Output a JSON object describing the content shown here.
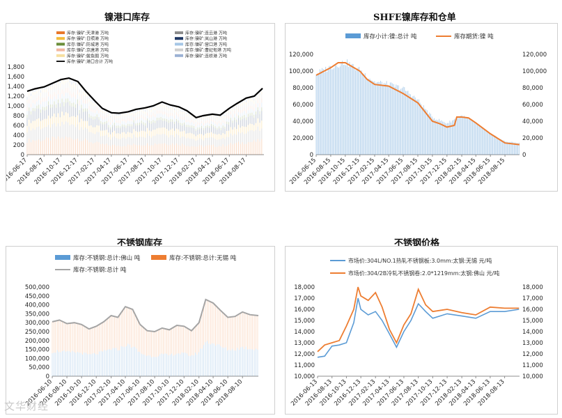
{
  "watermark": "文华财经",
  "chart_data": [
    {
      "id": "nickel-port",
      "type": "bar",
      "title": "镍港口库存",
      "ylim": [
        0,
        1800
      ],
      "yticks": [
        0,
        200,
        400,
        600,
        800,
        1000,
        1200,
        1400,
        1600,
        1800
      ],
      "ytick_labels": [
        "0",
        "200",
        "400",
        "600",
        "800",
        "1,000",
        "1,200",
        "1,400",
        "1,600",
        "1,800"
      ],
      "x_start": "2016-06-17",
      "x_end": "2018-10-20",
      "xtick_labels": [
        "2016-06-17",
        "2016-08-17",
        "2016-10-17",
        "2016-12-17",
        "2017-02-17",
        "2017-04-17",
        "2017-06-17",
        "2017-08-17",
        "2017-10-17",
        "2017-12-17",
        "2018-02-17",
        "2018-04-17",
        "2018-06-17",
        "2018-08-17"
      ],
      "legend": [
        {
          "name": "库存:镍矿:天津港 万吨",
          "color": "#e8782a",
          "kind": "bar"
        },
        {
          "name": "库存:镍矿:连云港 万吨",
          "color": "#8c8c8c",
          "kind": "bar"
        },
        {
          "name": "库存:镍矿:日照港 万吨",
          "color": "#f4bc3c",
          "kind": "bar"
        },
        {
          "name": "库存:镍矿:岚山港 万吨",
          "color": "#203864",
          "kind": "bar"
        },
        {
          "name": "库存:镍矿:防城港 万吨",
          "color": "#6b8e3a",
          "kind": "bar"
        },
        {
          "name": "库存:镍矿:营口港 万吨",
          "color": "#a6c6e6",
          "kind": "bar"
        },
        {
          "name": "库存:镍矿:京唐港 万吨",
          "color": "#f2b8a0",
          "kind": "bar"
        },
        {
          "name": "库存:镍矿:曹妃甸港 万吨",
          "color": "#cfcfcf",
          "kind": "bar"
        },
        {
          "name": "库存:镍矿:鲅鱼圈 万吨",
          "color": "#f7dfa0",
          "kind": "bar"
        },
        {
          "name": "库存:镍矿:连桥港 万吨",
          "color": "#9bb1d4",
          "kind": "bar"
        },
        {
          "name": "库存:镍矿:港口合计 万吨",
          "color": "#000000",
          "kind": "line"
        }
      ],
      "total_series": {
        "name": "库存:镍矿:港口合计 万吨",
        "points": [
          [
            "2016-06-17",
            1300
          ],
          [
            "2016-07-15",
            1350
          ],
          [
            "2016-08-17",
            1390
          ],
          [
            "2016-09-15",
            1460
          ],
          [
            "2016-10-17",
            1540
          ],
          [
            "2016-11-15",
            1570
          ],
          [
            "2016-12-17",
            1500
          ],
          [
            "2017-01-15",
            1300
          ],
          [
            "2017-02-17",
            1100
          ],
          [
            "2017-03-15",
            950
          ],
          [
            "2017-04-17",
            860
          ],
          [
            "2017-05-15",
            850
          ],
          [
            "2017-06-17",
            880
          ],
          [
            "2017-07-15",
            930
          ],
          [
            "2017-08-17",
            960
          ],
          [
            "2017-09-15",
            1000
          ],
          [
            "2017-10-17",
            1080
          ],
          [
            "2017-11-15",
            1020
          ],
          [
            "2017-12-17",
            980
          ],
          [
            "2018-01-15",
            900
          ],
          [
            "2018-02-17",
            760
          ],
          [
            "2018-03-15",
            800
          ],
          [
            "2018-04-17",
            830
          ],
          [
            "2018-05-15",
            810
          ],
          [
            "2018-06-17",
            950
          ],
          [
            "2018-07-15",
            1050
          ],
          [
            "2018-08-17",
            1160
          ],
          [
            "2018-09-15",
            1200
          ],
          [
            "2018-10-15",
            1360
          ]
        ]
      }
    },
    {
      "id": "shfe-nickel",
      "type": "bar",
      "title": "SHFE镍库存和仓单",
      "ylim": [
        0,
        120000
      ],
      "yticks": [
        0,
        20000,
        40000,
        60000,
        80000,
        100000,
        120000
      ],
      "ytick_labels": [
        "0",
        "20,000",
        "40,000",
        "60,000",
        "80,000",
        "100,000",
        "120,000"
      ],
      "x_start": "2016-06-15",
      "x_end": "2018-10-15",
      "xtick_labels": [
        "2016-06-15",
        "2016-08-15",
        "2016-10-15",
        "2016-12-15",
        "2017-02-15",
        "2017-04-15",
        "2017-06-15",
        "2017-08-15",
        "2017-10-15",
        "2017-12-15",
        "2018-02-15",
        "2018-04-15",
        "2018-06-15",
        "2018-08-15"
      ],
      "series": [
        {
          "name": "库存小计:镍:总计 吨",
          "color": "#5b9bd5",
          "kind": "bar",
          "points": [
            [
              "2016-06-15",
              98000
            ],
            [
              "2016-08-15",
              106000
            ],
            [
              "2016-10-15",
              112000
            ],
            [
              "2016-12-15",
              102000
            ],
            [
              "2017-02-15",
              88000
            ],
            [
              "2017-04-15",
              85000
            ],
            [
              "2017-06-15",
              80000
            ],
            [
              "2017-08-15",
              66000
            ],
            [
              "2017-10-15",
              45000
            ],
            [
              "2017-12-15",
              38000
            ],
            [
              "2018-02-15",
              47000
            ],
            [
              "2018-04-15",
              38000
            ],
            [
              "2018-06-15",
              25000
            ],
            [
              "2018-08-15",
              16000
            ],
            [
              "2018-10-15",
              14000
            ]
          ]
        },
        {
          "name": "库存期货:镍 吨",
          "color": "#ed7d31",
          "kind": "line",
          "points": [
            [
              "2016-06-15",
              95000
            ],
            [
              "2016-08-15",
              104000
            ],
            [
              "2016-09-15",
              110000
            ],
            [
              "2016-10-15",
              110000
            ],
            [
              "2016-12-15",
              100000
            ],
            [
              "2017-01-15",
              90000
            ],
            [
              "2017-02-15",
              84000
            ],
            [
              "2017-04-15",
              82000
            ],
            [
              "2017-06-15",
              73000
            ],
            [
              "2017-08-15",
              62000
            ],
            [
              "2017-10-15",
              40000
            ],
            [
              "2017-11-15",
              37000
            ],
            [
              "2017-12-15",
              33000
            ],
            [
              "2018-01-15",
              35000
            ],
            [
              "2018-01-25",
              45000
            ],
            [
              "2018-02-15",
              45000
            ],
            [
              "2018-03-15",
              44000
            ],
            [
              "2018-04-15",
              38000
            ],
            [
              "2018-06-15",
              25000
            ],
            [
              "2018-08-15",
              14000
            ],
            [
              "2018-10-15",
              12000
            ]
          ]
        }
      ]
    },
    {
      "id": "stainless-stock",
      "type": "bar",
      "title": "不锈钢库存",
      "ylim": [
        0,
        500000
      ],
      "yticks": [
        0,
        50000,
        100000,
        150000,
        200000,
        250000,
        300000,
        350000,
        400000,
        450000,
        500000
      ],
      "ytick_labels": [
        "0",
        "50,000",
        "100,000",
        "150,000",
        "200,000",
        "250,000",
        "300,000",
        "350,000",
        "400,000",
        "450,000",
        "500,000"
      ],
      "x_start": "2016-06-10",
      "x_end": "2018-10-15",
      "xtick_labels": [
        "2016-06-10",
        "2016-08-10",
        "2016-10-10",
        "2016-12-10",
        "2017-02-10",
        "2017-04-10",
        "2017-06-10",
        "2017-08-10",
        "2017-10-10",
        "2017-12-10",
        "2018-02-10",
        "2018-04-10",
        "2018-06-10",
        "2018-08-10"
      ],
      "series": [
        {
          "name": "库存:不锈钢:总计:佛山 吨",
          "color": "#5b9bd5",
          "kind": "bar"
        },
        {
          "name": "库存:不锈钢:总计:无锡 吨",
          "color": "#ed7d31",
          "kind": "bar"
        },
        {
          "name": "库存:不锈钢:总计 吨",
          "color": "#a5a5a5",
          "kind": "line",
          "points": [
            [
              "2016-06-10",
              305000
            ],
            [
              "2016-07-10",
              315000
            ],
            [
              "2016-08-10",
              295000
            ],
            [
              "2016-09-10",
              300000
            ],
            [
              "2016-10-10",
              290000
            ],
            [
              "2016-11-10",
              265000
            ],
            [
              "2016-12-10",
              280000
            ],
            [
              "2017-01-10",
              305000
            ],
            [
              "2017-02-10",
              340000
            ],
            [
              "2017-03-10",
              330000
            ],
            [
              "2017-04-10",
              390000
            ],
            [
              "2017-05-10",
              375000
            ],
            [
              "2017-06-10",
              290000
            ],
            [
              "2017-07-10",
              255000
            ],
            [
              "2017-08-10",
              250000
            ],
            [
              "2017-09-10",
              270000
            ],
            [
              "2017-10-10",
              260000
            ],
            [
              "2017-11-10",
              285000
            ],
            [
              "2017-12-10",
              280000
            ],
            [
              "2018-01-10",
              255000
            ],
            [
              "2018-02-10",
              300000
            ],
            [
              "2018-03-10",
              430000
            ],
            [
              "2018-04-10",
              410000
            ],
            [
              "2018-05-10",
              370000
            ],
            [
              "2018-06-10",
              330000
            ],
            [
              "2018-07-10",
              335000
            ],
            [
              "2018-08-10",
              360000
            ],
            [
              "2018-09-10",
              345000
            ],
            [
              "2018-10-15",
              340000
            ]
          ]
        }
      ]
    },
    {
      "id": "stainless-price",
      "type": "line",
      "title": "不锈钢价格",
      "ylim": [
        10000,
        18000
      ],
      "yticks": [
        10000,
        11000,
        12000,
        13000,
        14000,
        15000,
        16000,
        17000,
        18000
      ],
      "ytick_labels": [
        "10,000",
        "11,000",
        "12,000",
        "13,000",
        "14,000",
        "15,000",
        "16,000",
        "17,000",
        "18,000"
      ],
      "x_start": "2016-06-13",
      "x_end": "2018-10-15",
      "xtick_labels": [
        "2016-06-13",
        "2016-08-13",
        "2016-10-13",
        "2016-12-13",
        "2017-02-13",
        "2017-04-13",
        "2017-06-13",
        "2017-08-13",
        "2017-10-13",
        "2017-12-13",
        "2018-02-13",
        "2018-04-13",
        "2018-06-13",
        "2018-08-13"
      ],
      "series": [
        {
          "name": "市场价:304L/NO.1热轧不锈钢板:3.0mm:太钢:无锡  元/吨",
          "color": "#5b9bd5",
          "points": [
            [
              "2016-06-13",
              11700
            ],
            [
              "2016-07-13",
              11800
            ],
            [
              "2016-08-13",
              12700
            ],
            [
              "2016-09-13",
              12800
            ],
            [
              "2016-10-13",
              13000
            ],
            [
              "2016-11-13",
              14800
            ],
            [
              "2016-12-01",
              17000
            ],
            [
              "2016-12-13",
              16000
            ],
            [
              "2017-01-13",
              15500
            ],
            [
              "2017-02-13",
              15800
            ],
            [
              "2017-03-13",
              15000
            ],
            [
              "2017-04-13",
              13800
            ],
            [
              "2017-05-13",
              12600
            ],
            [
              "2017-06-13",
              14000
            ],
            [
              "2017-07-13",
              15000
            ],
            [
              "2017-08-13",
              16500
            ],
            [
              "2017-09-13",
              15800
            ],
            [
              "2017-10-13",
              15200
            ],
            [
              "2017-12-13",
              15600
            ],
            [
              "2018-02-13",
              15400
            ],
            [
              "2018-04-13",
              15200
            ],
            [
              "2018-06-13",
              15800
            ],
            [
              "2018-08-13",
              15800
            ],
            [
              "2018-10-13",
              16000
            ]
          ]
        },
        {
          "name": "市场价:304/2B冷轧不锈钢卷:2.0*1219mm:太钢:佛山  元/吨",
          "color": "#ed7d31",
          "points": [
            [
              "2016-06-13",
              12200
            ],
            [
              "2016-07-13",
              12800
            ],
            [
              "2016-08-13",
              13000
            ],
            [
              "2016-09-13",
              13200
            ],
            [
              "2016-10-13",
              14500
            ],
            [
              "2016-11-13",
              16000
            ],
            [
              "2016-12-01",
              18000
            ],
            [
              "2016-12-13",
              17200
            ],
            [
              "2017-01-13",
              16800
            ],
            [
              "2017-02-13",
              17500
            ],
            [
              "2017-03-13",
              16200
            ],
            [
              "2017-04-13",
              14200
            ],
            [
              "2017-05-13",
              13000
            ],
            [
              "2017-06-13",
              14600
            ],
            [
              "2017-07-13",
              15600
            ],
            [
              "2017-08-13",
              17800
            ],
            [
              "2017-09-13",
              16400
            ],
            [
              "2017-10-13",
              15800
            ],
            [
              "2017-12-13",
              16000
            ],
            [
              "2018-02-13",
              15700
            ],
            [
              "2018-04-13",
              15500
            ],
            [
              "2018-06-13",
              16200
            ],
            [
              "2018-08-13",
              16100
            ],
            [
              "2018-10-13",
              16100
            ]
          ]
        }
      ]
    }
  ]
}
